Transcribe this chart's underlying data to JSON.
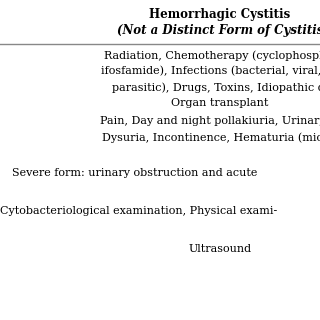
{
  "title": "Hemorrhagic Cystitis",
  "subtitle": "(Not a Distinct Form of Cystitis",
  "background_color": "#ffffff",
  "text_color": "#000000",
  "title_fontsize": 8.5,
  "subtitle_fontsize": 8.5,
  "body_fontsize": 8.0,
  "line_color": "#888888",
  "etiology_lines": [
    "Radiation, Chemotherapy (cyclophospha-",
    "ifosfamide), Infections (bacterial, viral, fu-",
    "parasitic), Drugs, Toxins, Idiopathic d-",
    "Organ transplant"
  ],
  "symptom_lines": [
    "Pain, Day and night pollakiuria, Urinary u-",
    "Dysuria, Incontinence, Hematuria (micro-"
  ],
  "complication_line": "Severe form: urinary obstruction and acute",
  "diagnosis_line": "Cytobacteriological examination, Physical exami-",
  "imaging_line": "Ultrasound"
}
